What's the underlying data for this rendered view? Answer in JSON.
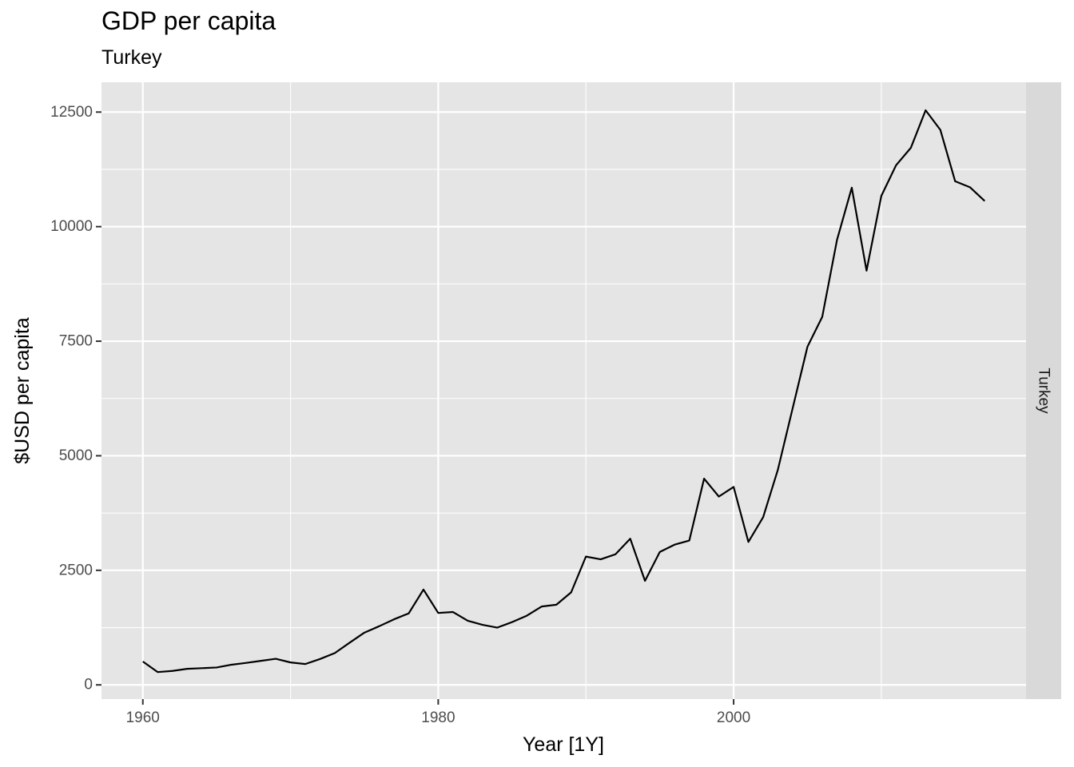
{
  "chart_data": {
    "type": "line",
    "title": "GDP per capita",
    "subtitle": "Turkey",
    "xlabel": "Year [1Y]",
    "ylabel": "$USD per capita",
    "facet_label": "Turkey",
    "xlim": [
      1957.2,
      2019.8
    ],
    "ylim": [
      -310,
      13150
    ],
    "x_ticks": [
      1960,
      1980,
      2000
    ],
    "x_minor_ticks": [
      1970,
      1990,
      2010
    ],
    "y_ticks": [
      0,
      2500,
      5000,
      7500,
      10000,
      12500
    ],
    "y_minor_ticks": [
      1250,
      3750,
      6250,
      8750,
      11250
    ],
    "grid": true,
    "colors": {
      "panel": "#e5e5e5",
      "grid": "#ffffff",
      "strip": "#d9d9d9",
      "line": "#000000"
    },
    "series": [
      {
        "x": [
          1960,
          1961,
          1962,
          1963,
          1964,
          1965,
          1966,
          1967,
          1968,
          1969,
          1970,
          1971,
          1972,
          1973,
          1974,
          1975,
          1976,
          1977,
          1978,
          1979,
          1980,
          1981,
          1982,
          1983,
          1984,
          1985,
          1986,
          1987,
          1988,
          1989,
          1990,
          1991,
          1992,
          1993,
          1994,
          1995,
          1996,
          1997,
          1998,
          1999,
          2000,
          2001,
          2002,
          2003,
          2004,
          2005,
          2006,
          2007,
          2008,
          2009,
          2010,
          2011,
          2012,
          2013,
          2014,
          2015,
          2016,
          2017
        ],
        "values": [
          510,
          280,
          305,
          350,
          365,
          380,
          440,
          480,
          525,
          570,
          490,
          455,
          565,
          695,
          920,
          1140,
          1280,
          1430,
          1560,
          2080,
          1570,
          1590,
          1400,
          1310,
          1250,
          1370,
          1510,
          1710,
          1750,
          2020,
          2800,
          2740,
          2850,
          3190,
          2270,
          2900,
          3060,
          3150,
          4500,
          4110,
          4320,
          3120,
          3660,
          4700,
          6040,
          7380,
          8030,
          9710,
          10850,
          9040,
          10670,
          11340,
          11720,
          12540,
          12110,
          10990,
          10860,
          10560
        ]
      }
    ]
  }
}
